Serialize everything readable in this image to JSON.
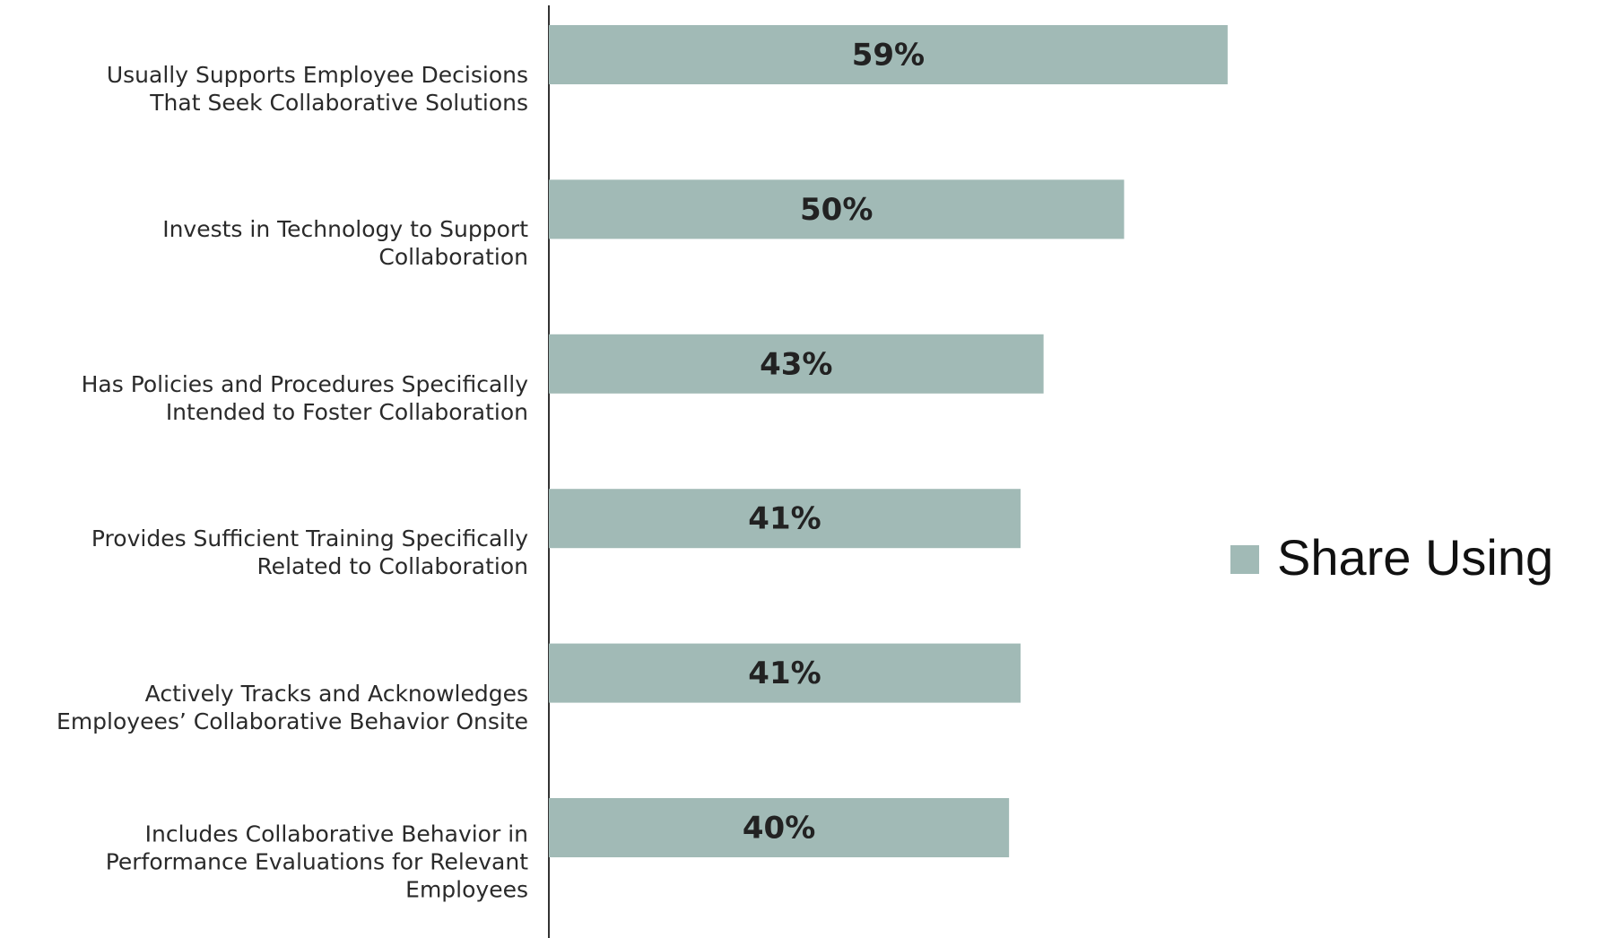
{
  "chart_data": {
    "type": "barh",
    "categories": [
      "Usually Supports Employee Decisions\nThat Seek Collaborative Solutions",
      "Invests in Technology to Support\nCollaboration",
      "Has Policies and Procedures Specifically\nIntended to Foster Collaboration",
      "Provides Sufficient Training Specifically\nRelated to Collaboration",
      "Actively Tracks and Acknowledges\nEmployees’ Collaborative Behavior Onsite",
      "Includes Collaborative Behavior in\nPerformance Evaluations for Relevant\nEmployees"
    ],
    "series": [
      {
        "name": "Share Using",
        "color": "#a1bab6",
        "values": [
          59,
          50,
          43,
          41,
          41,
          40
        ],
        "value_labels": [
          "59%",
          "50%",
          "43%",
          "41%",
          "41%",
          "40%"
        ]
      }
    ],
    "xlim": [
      0,
      70
    ],
    "legend": "right"
  }
}
